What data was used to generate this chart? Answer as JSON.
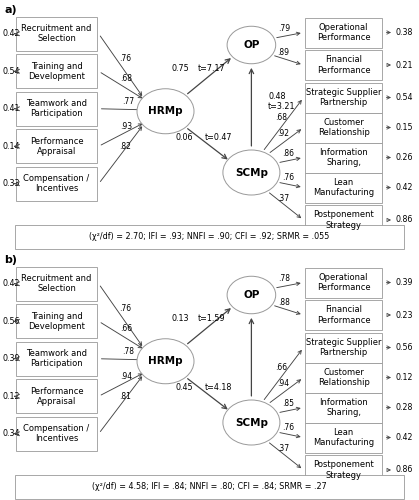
{
  "panel_a": {
    "label": "a)",
    "hrm_boxes": [
      "Recruitment and\nSelection",
      "Training and\nDevelopment",
      "Teamwork and\nParticipation",
      "Performance\nAppraisal",
      "Compensation /\nIncentives"
    ],
    "hrm_left_vals": [
      "0.42",
      "0.54",
      "0.41",
      "0.14",
      "0.33"
    ],
    "hrm_loadings": [
      ".76",
      ".68",
      ".77",
      ".93",
      ".82"
    ],
    "op_boxes": [
      "Operational\nPerformance",
      "Financial\nPerformance"
    ],
    "op_right_vals": [
      "0.38",
      "0.21"
    ],
    "op_loadings": [
      ".79",
      ".89"
    ],
    "scm_boxes": [
      "Strategic Supplier\nPartnership",
      "Customer\nRelationship",
      "Information\nSharing,",
      "Lean\nManufacturing",
      "Postponement\nStrategy"
    ],
    "scm_right_vals": [
      "0.54",
      "0.15",
      "0.26",
      "0.42",
      "0.86"
    ],
    "scm_loadings": [
      ".68",
      ".92",
      ".86",
      ".76",
      ".37"
    ],
    "hrm_to_op": "0.75",
    "hrm_to_op_t": "t=7.17",
    "hrm_to_scm": "0.06",
    "hrm_to_scm_t": "t=0.47",
    "scm_to_op": "0.48",
    "scm_to_op_t": "t=3.21",
    "fit_text": "(χ²/df) = 2.70; IFI = .93; NNFI = .90; CFI = .92; SRMR = .055"
  },
  "panel_b": {
    "label": "b)",
    "hrm_boxes": [
      "Recruitment and\nSelection",
      "Training and\nDevelopment",
      "Teamwork and\nParticipation",
      "Performance\nAppraisal",
      "Compensation /\nIncentives"
    ],
    "hrm_left_vals": [
      "0.42",
      "0.56",
      "0.39",
      "0.12",
      "0.34"
    ],
    "hrm_loadings": [
      ".76",
      ".66",
      ".78",
      ".94",
      ".81"
    ],
    "op_boxes": [
      "Operational\nPerformance",
      "Financial\nPerformance"
    ],
    "op_right_vals": [
      "0.39",
      "0.23"
    ],
    "op_loadings": [
      ".78",
      ".88"
    ],
    "scm_boxes": [
      "Strategic Supplier\nPartnership",
      "Customer\nRelationship",
      "Information\nSharing,",
      "Lean\nManufacturing",
      "Postponement\nStrategy"
    ],
    "scm_right_vals": [
      "0.56",
      "0.12",
      "0.28",
      "0.42",
      "0.86"
    ],
    "scm_loadings": [
      ".66",
      ".94",
      ".85",
      ".76",
      ".37"
    ],
    "hrm_to_op": "0.13",
    "hrm_to_op_t": "t=1.59",
    "hrm_to_scm": "0.45",
    "hrm_to_scm_t": "t=4.18",
    "scm_to_op": "",
    "scm_to_op_t": "",
    "fit_text": "(χ²/df) = 4.58; IFI = .84; NNFI = .80; CFI = .84; SRMR = .27"
  },
  "bg_color": "#ffffff",
  "box_edge": "#999999",
  "arrow_color": "#444444",
  "font_size": 6.0,
  "fit_font_size": 5.8
}
